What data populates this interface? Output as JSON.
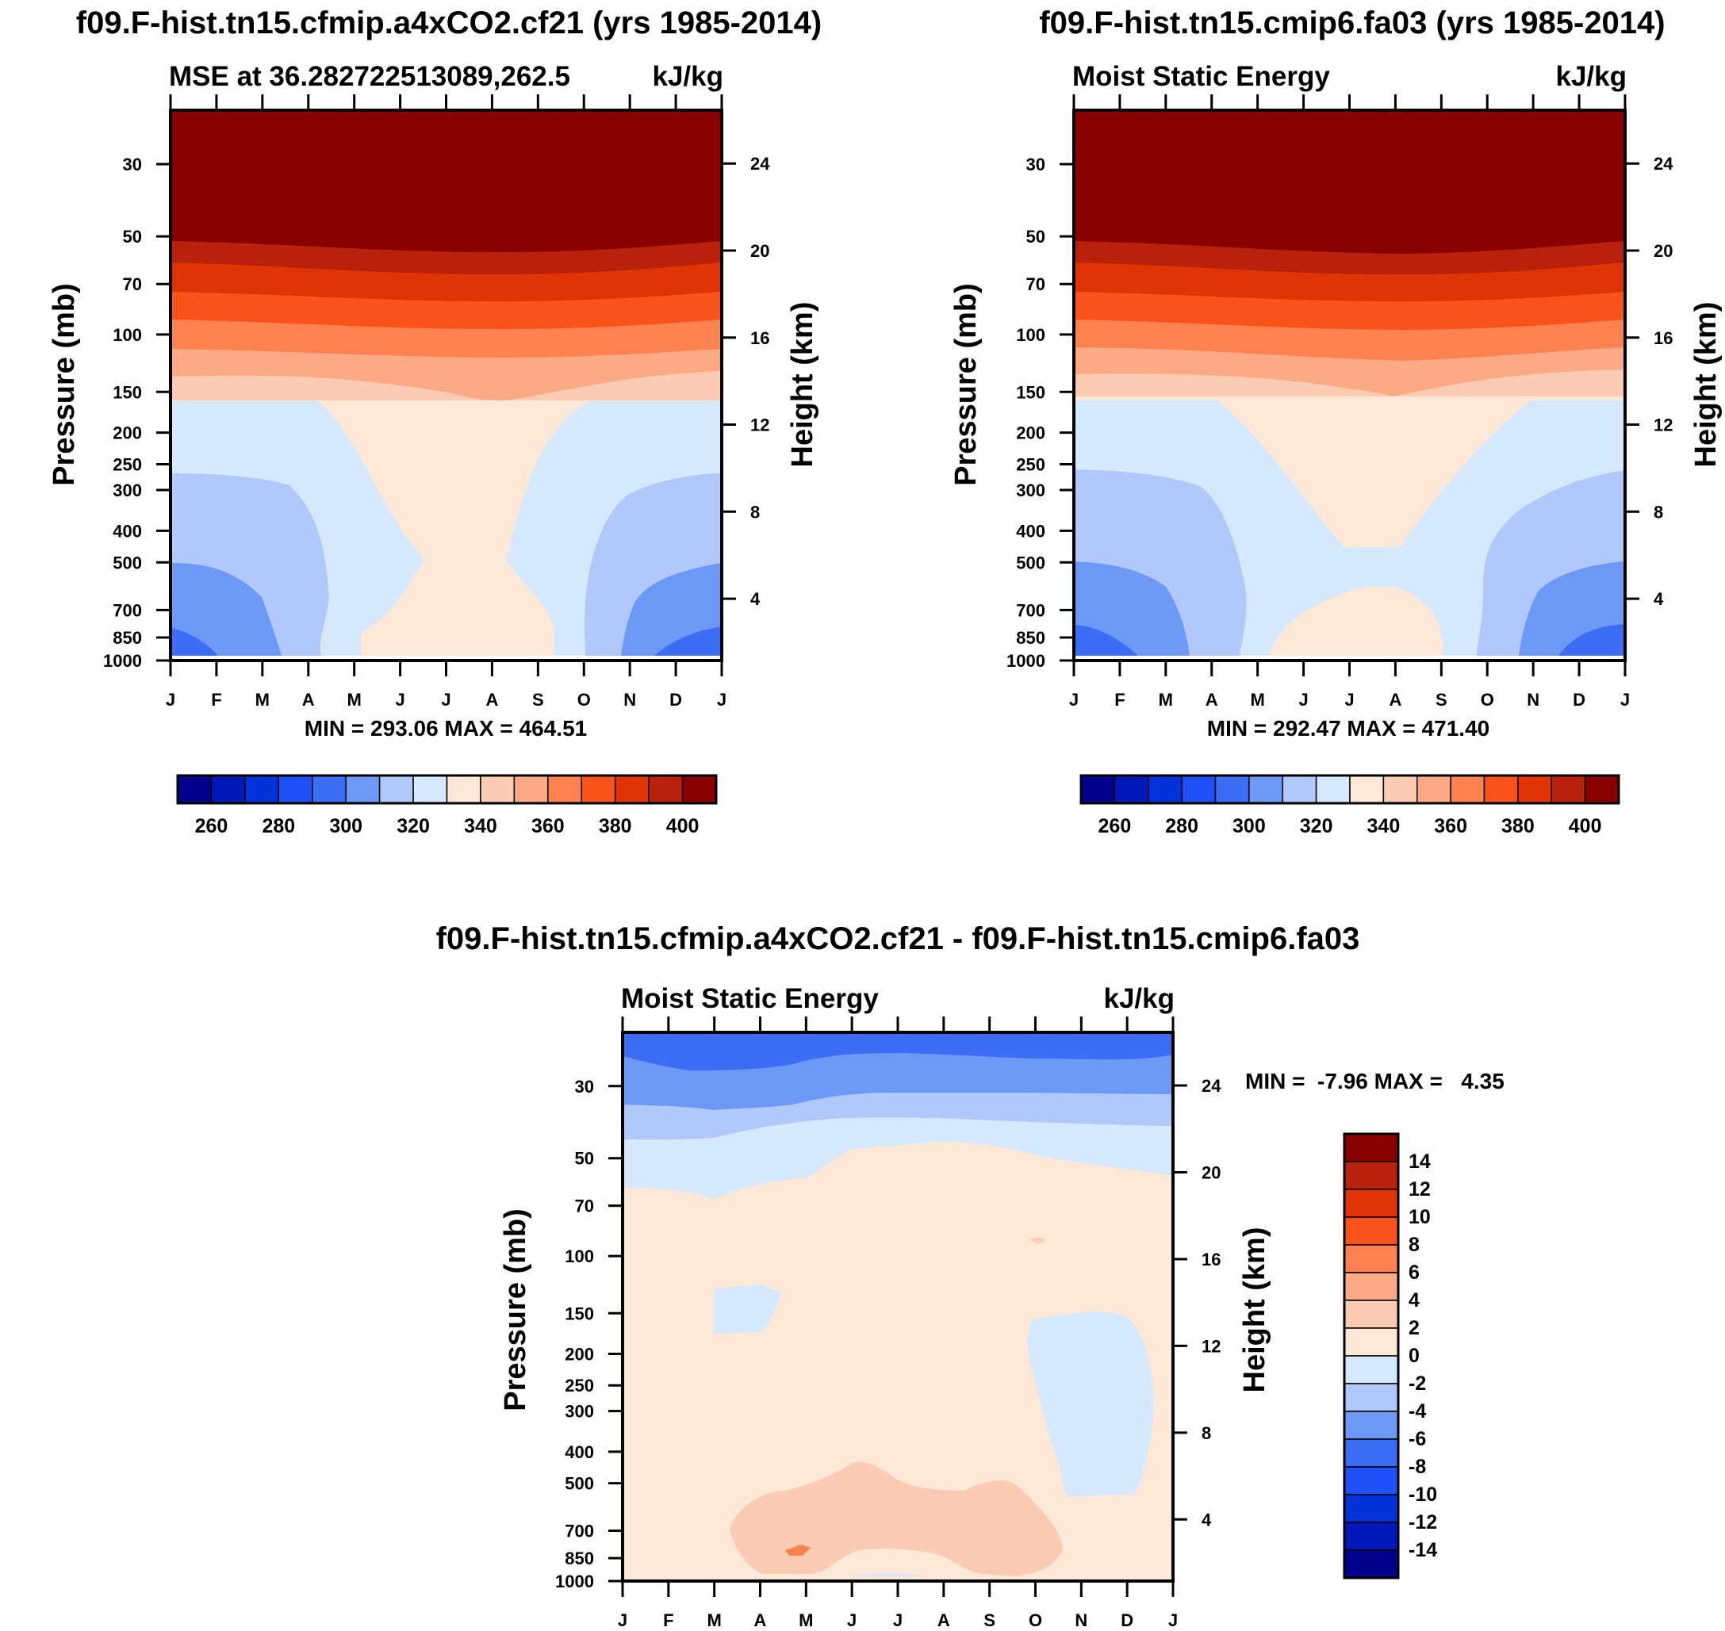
{
  "chart_data": [
    {
      "type": "contour",
      "title": "f09.F-hist.tn15.cfmip.a4xCO2.cf21 (yrs 1985-2014)",
      "subtitle_left": "MSE at 36.282722513089,262.5",
      "subtitle_right": "kJ/kg",
      "ylabel": "Pressure (mb)",
      "ylabel_right": "Height (km)",
      "xticks": [
        "J",
        "F",
        "M",
        "A",
        "M",
        "J",
        "J",
        "A",
        "S",
        "O",
        "N",
        "D",
        "J"
      ],
      "yticks": [
        "30",
        "50",
        "70",
        "100",
        "150",
        "200",
        "250",
        "300",
        "400",
        "500",
        "700",
        "850",
        "1000"
      ],
      "yticks_right": [
        "24",
        "20",
        "16",
        "12",
        "8",
        "4"
      ],
      "stats": "MIN = 293.06 MAX = 464.51",
      "colorbar": {
        "labels": [
          "260",
          "280",
          "300",
          "320",
          "340",
          "360",
          "380",
          "400"
        ]
      },
      "zone_colors": [
        "#3b6df5",
        "#6d98f5",
        "#b0c8fa",
        "#d6e8fc",
        "#fee9d8",
        "#fbcbb3",
        "#fcaa86",
        "#fc8251",
        "#f9531b",
        "#e03407",
        "#b8210b",
        "#880000"
      ]
    },
    {
      "type": "contour",
      "title": "f09.F-hist.tn15.cmip6.fa03 (yrs 1985-2014)",
      "subtitle_left": "Moist Static Energy",
      "subtitle_right": "kJ/kg",
      "ylabel": "Pressure (mb)",
      "ylabel_right": "Height (km)",
      "xticks": [
        "J",
        "F",
        "M",
        "A",
        "M",
        "J",
        "J",
        "A",
        "S",
        "O",
        "N",
        "D",
        "J"
      ],
      "yticks": [
        "30",
        "50",
        "70",
        "100",
        "150",
        "200",
        "250",
        "300",
        "400",
        "500",
        "700",
        "850",
        "1000"
      ],
      "yticks_right": [
        "24",
        "20",
        "16",
        "12",
        "8",
        "4"
      ],
      "stats": "MIN = 292.47 MAX = 471.40",
      "colorbar": {
        "labels": [
          "260",
          "280",
          "300",
          "320",
          "340",
          "360",
          "380",
          "400"
        ]
      }
    },
    {
      "type": "contour",
      "title": "f09.F-hist.tn15.cfmip.a4xCO2.cf21 - f09.F-hist.tn15.cmip6.fa03",
      "subtitle_left": "Moist Static Energy",
      "subtitle_right": "kJ/kg",
      "ylabel": "Pressure (mb)",
      "ylabel_right": "Height (km)",
      "xticks": [
        "J",
        "F",
        "M",
        "A",
        "M",
        "J",
        "J",
        "A",
        "S",
        "O",
        "N",
        "D",
        "J"
      ],
      "yticks": [
        "30",
        "50",
        "70",
        "100",
        "150",
        "200",
        "250",
        "300",
        "400",
        "500",
        "700",
        "850",
        "1000"
      ],
      "yticks_right": [
        "24",
        "20",
        "16",
        "12",
        "8",
        "4"
      ],
      "stats": "MIN =  -7.96 MAX =   4.35",
      "colorbar": {
        "labels": [
          "14",
          "12",
          "10",
          "8",
          "6",
          "4",
          "2",
          "0",
          "-2",
          "-4",
          "-6",
          "-8",
          "-10",
          "-12",
          "-14"
        ]
      }
    }
  ],
  "palette": [
    "#00008c",
    "#0019b8",
    "#0032d8",
    "#1e50f5",
    "#3b6df5",
    "#6d98f5",
    "#b0c8fa",
    "#d6e8fc",
    "#fee9d8",
    "#fbcbb3",
    "#fcaa86",
    "#fc8251",
    "#f9531b",
    "#e03407",
    "#b8210b",
    "#880000"
  ]
}
